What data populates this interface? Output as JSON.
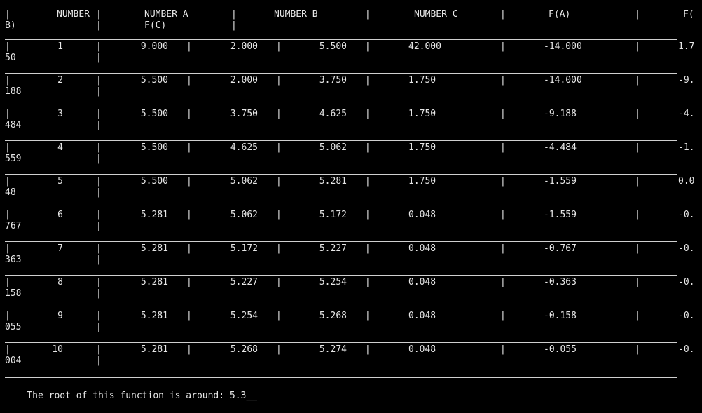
{
  "header": {
    "pipe": "|",
    "col_number": "NUMBER",
    "col_number_a": "NUMBER A",
    "col_number_b": "NUMBER B",
    "col_number_c": "NUMBER C",
    "col_fa": "F(A)",
    "col_fb_start": "F(",
    "col_fb_end": "B)",
    "col_fc": "F(C)"
  },
  "rows": [
    {
      "n": "1",
      "a": "9.000",
      "b": "2.000",
      "c": "5.500",
      "fa": "42.000",
      "fb": "-14.000",
      "fc_start": "1.7",
      "fc_end": "50"
    },
    {
      "n": "2",
      "a": "5.500",
      "b": "2.000",
      "c": "3.750",
      "fa": "1.750",
      "fb": "-14.000",
      "fc_start": "-9.",
      "fc_end": "188"
    },
    {
      "n": "3",
      "a": "5.500",
      "b": "3.750",
      "c": "4.625",
      "fa": "1.750",
      "fb": "-9.188",
      "fc_start": "-4.",
      "fc_end": "484"
    },
    {
      "n": "4",
      "a": "5.500",
      "b": "4.625",
      "c": "5.062",
      "fa": "1.750",
      "fb": "-4.484",
      "fc_start": "-1.",
      "fc_end": "559"
    },
    {
      "n": "5",
      "a": "5.500",
      "b": "5.062",
      "c": "5.281",
      "fa": "1.750",
      "fb": "-1.559",
      "fc_start": "0.0",
      "fc_end": "48"
    },
    {
      "n": "6",
      "a": "5.281",
      "b": "5.062",
      "c": "5.172",
      "fa": "0.048",
      "fb": "-1.559",
      "fc_start": "-0.",
      "fc_end": "767"
    },
    {
      "n": "7",
      "a": "5.281",
      "b": "5.172",
      "c": "5.227",
      "fa": "0.048",
      "fb": "-0.767",
      "fc_start": "-0.",
      "fc_end": "363"
    },
    {
      "n": "8",
      "a": "5.281",
      "b": "5.227",
      "c": "5.254",
      "fa": "0.048",
      "fb": "-0.363",
      "fc_start": "-0.",
      "fc_end": "158"
    },
    {
      "n": "9",
      "a": "5.281",
      "b": "5.254",
      "c": "5.268",
      "fa": "0.048",
      "fb": "-0.158",
      "fc_start": "-0.",
      "fc_end": "055"
    },
    {
      "n": "10",
      "a": "5.281",
      "b": "5.268",
      "c": "5.274",
      "fa": "0.048",
      "fb": "-0.055",
      "fc_start": "-0.",
      "fc_end": "004"
    }
  ],
  "status": {
    "text": "The root of this function is around: 5.3",
    "cursor": "__"
  }
}
